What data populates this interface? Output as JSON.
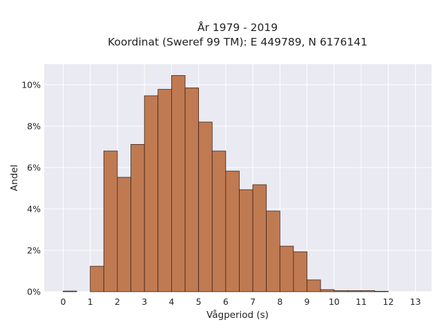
{
  "chart_data": {
    "type": "bar",
    "title_line1": "År 1979 - 2019",
    "title_line2": "Koordinat (Sweref 99 TM): E 449789, N 6176141",
    "xlabel": "Vågperiod (s)",
    "ylabel": "Andel",
    "bin_width": 0.5,
    "xlim": [
      -0.7,
      13.6
    ],
    "ylim": [
      0,
      0.11
    ],
    "xticks": [
      0,
      1,
      2,
      3,
      4,
      5,
      6,
      7,
      8,
      9,
      10,
      11,
      12,
      13
    ],
    "xtick_labels": [
      "0",
      "1",
      "2",
      "3",
      "4",
      "5",
      "6",
      "7",
      "8",
      "9",
      "10",
      "11",
      "12",
      "13"
    ],
    "yticks": [
      0,
      0.02,
      0.04,
      0.06,
      0.08,
      0.1
    ],
    "ytick_labels": [
      "0%",
      "2%",
      "4%",
      "6%",
      "8%",
      "10%"
    ],
    "grid": true,
    "bar_color": "#c07a52",
    "edge_color": "#3a2418",
    "background_color": "#eaeaf2",
    "bins": [
      {
        "x": 0.0,
        "value": 0.0003
      },
      {
        "x": 0.5,
        "value": 0.0
      },
      {
        "x": 1.0,
        "value": 0.0123
      },
      {
        "x": 1.5,
        "value": 0.068
      },
      {
        "x": 2.0,
        "value": 0.0553
      },
      {
        "x": 2.5,
        "value": 0.0712
      },
      {
        "x": 3.0,
        "value": 0.0947
      },
      {
        "x": 3.5,
        "value": 0.0978
      },
      {
        "x": 4.0,
        "value": 0.1045
      },
      {
        "x": 4.5,
        "value": 0.0985
      },
      {
        "x": 5.0,
        "value": 0.082
      },
      {
        "x": 5.5,
        "value": 0.068
      },
      {
        "x": 6.0,
        "value": 0.0583
      },
      {
        "x": 6.5,
        "value": 0.0493
      },
      {
        "x": 7.0,
        "value": 0.0517
      },
      {
        "x": 7.5,
        "value": 0.039
      },
      {
        "x": 8.0,
        "value": 0.022
      },
      {
        "x": 8.5,
        "value": 0.0193
      },
      {
        "x": 9.0,
        "value": 0.0057
      },
      {
        "x": 9.5,
        "value": 0.001
      },
      {
        "x": 10.0,
        "value": 0.0005
      },
      {
        "x": 10.5,
        "value": 0.0005
      },
      {
        "x": 11.0,
        "value": 0.0005
      },
      {
        "x": 11.5,
        "value": 0.0002
      }
    ]
  }
}
